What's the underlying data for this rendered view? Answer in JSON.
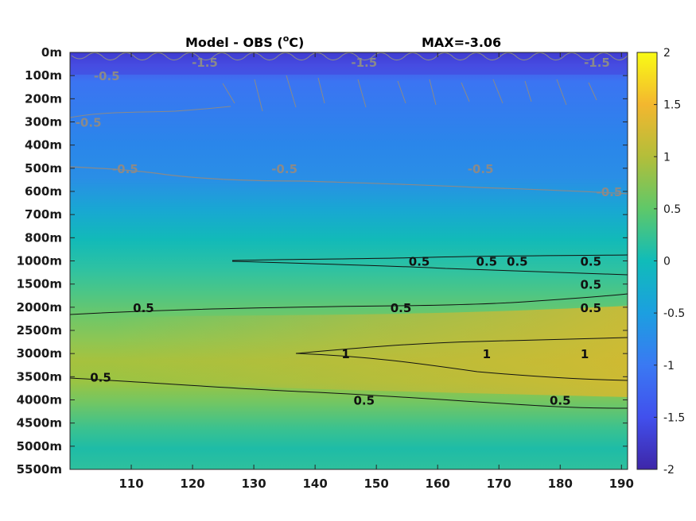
{
  "chart_data": {
    "type": "heatmap",
    "title": "Model - OBS (°C)",
    "title_main": "Model - OBS (",
    "title_sup": "o",
    "title_unit": "C)",
    "max_label": "MAX=-3.06",
    "x_ticks": [
      "110",
      "120",
      "130",
      "140",
      "150",
      "160",
      "170",
      "180",
      "190"
    ],
    "x_tick_values": [
      110,
      120,
      130,
      140,
      150,
      160,
      170,
      180,
      190
    ],
    "xlim": [
      100,
      191
    ],
    "y_ticks": [
      "0m",
      "100m",
      "200m",
      "300m",
      "400m",
      "500m",
      "600m",
      "700m",
      "800m",
      "1000m",
      "1500m",
      "2000m",
      "2500m",
      "3000m",
      "3500m",
      "4000m",
      "4500m",
      "5000m",
      "5500m"
    ],
    "colorbar": {
      "ticks": [
        "2",
        "1.5",
        "1",
        "0.5",
        "0",
        "-0.5",
        "-1",
        "-1.5",
        "-2"
      ],
      "tick_values": [
        2,
        1.5,
        1,
        0.5,
        0,
        -0.5,
        -1,
        -1.5,
        -2
      ],
      "clim": [
        -2,
        2
      ]
    },
    "colors": {
      "c_neg2": "#3e26a8",
      "c_neg15": "#4150ed",
      "c_neg1": "#3a79f3",
      "c_neg05": "#1c9fe0",
      "c_0": "#10bcb9",
      "c_05": "#5fc869",
      "c_1": "#b3be3a",
      "c_15": "#f3b72f",
      "c_2": "#f9fb15"
    },
    "depth_profile": [
      {
        "depth": "0m",
        "value": -1.8
      },
      {
        "depth": "100m",
        "value": -1.0
      },
      {
        "depth": "200m",
        "value": -0.9
      },
      {
        "depth": "300m",
        "value": -0.75
      },
      {
        "depth": "400m",
        "value": -0.8
      },
      {
        "depth": "500m",
        "value": -0.6
      },
      {
        "depth": "600m",
        "value": -0.4
      },
      {
        "depth": "700m",
        "value": -0.05
      },
      {
        "depth": "800m",
        "value": 0.1
      },
      {
        "depth": "1000m",
        "value": 0.35
      },
      {
        "depth": "1500m",
        "value": 0.45
      },
      {
        "depth": "2000m",
        "value": 0.55
      },
      {
        "depth": "2500m",
        "value": 0.8
      },
      {
        "depth": "3000m",
        "value": 0.95
      },
      {
        "depth": "3500m",
        "value": 0.7
      },
      {
        "depth": "4000m",
        "value": 0.4
      },
      {
        "depth": "4500m",
        "value": 0.2
      },
      {
        "depth": "5000m",
        "value": 0.05
      },
      {
        "depth": "5500m",
        "value": 0.15
      }
    ],
    "contour_labels": [
      {
        "text": "0.5",
        "x": 112,
        "depth": "2000m",
        "color": "black"
      },
      {
        "text": "0.5",
        "x": 154,
        "depth": "2000m",
        "color": "black"
      },
      {
        "text": "0.5",
        "x": 185,
        "depth": "2000m",
        "color": "black"
      },
      {
        "text": "1",
        "x": 145,
        "depth": "3000m",
        "color": "black"
      },
      {
        "text": "1",
        "x": 184,
        "depth": "3000m",
        "color": "black"
      },
      {
        "text": "1",
        "x": 168,
        "depth": "3000m",
        "color": "black"
      },
      {
        "text": "0.5",
        "x": 105,
        "depth": "3500m",
        "color": "black"
      },
      {
        "text": "0.5",
        "x": 148,
        "depth": "4000m",
        "color": "black"
      },
      {
        "text": "0.5",
        "x": 180,
        "depth": "4000m",
        "color": "black"
      },
      {
        "text": "0.5",
        "x": 185,
        "depth": "1000m",
        "color": "black"
      },
      {
        "text": "0.5",
        "x": 185,
        "depth": "1500m",
        "color": "black"
      },
      {
        "text": "0.5",
        "x": 157,
        "depth": "1000m",
        "color": "black"
      },
      {
        "text": "0.5",
        "x": 168,
        "depth": "1000m",
        "color": "black"
      },
      {
        "text": "0.5",
        "x": 173,
        "depth": "1000m",
        "color": "black"
      },
      {
        "text": "-0.5",
        "x": 109,
        "depth": "500m",
        "color": "gray"
      },
      {
        "text": "-0.5",
        "x": 135,
        "depth": "500m",
        "color": "gray"
      },
      {
        "text": "-0.5",
        "x": 167,
        "depth": "500m",
        "color": "gray"
      },
      {
        "text": "-0.5",
        "x": 188,
        "depth": "600m",
        "color": "gray"
      },
      {
        "text": "-0.5",
        "x": 106,
        "depth": "100m",
        "color": "gray"
      },
      {
        "text": "-0.5",
        "x": 103,
        "depth": "300m",
        "color": "gray"
      },
      {
        "text": "-1.5",
        "x": 122,
        "depth": "0m",
        "color": "gray"
      },
      {
        "text": "-1.5",
        "x": 148,
        "depth": "0m",
        "color": "gray"
      },
      {
        "text": "-1.5",
        "x": 186,
        "depth": "0m",
        "color": "gray"
      }
    ]
  }
}
